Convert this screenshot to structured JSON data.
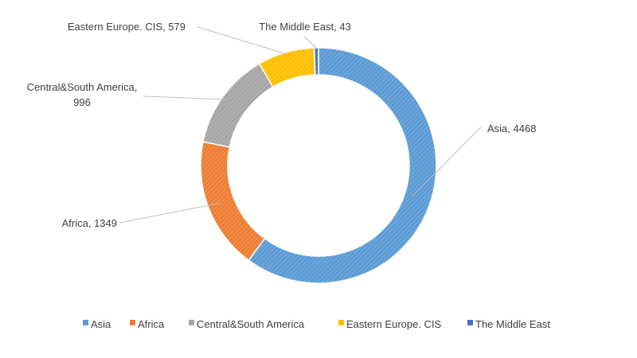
{
  "chart_data": {
    "type": "pie",
    "style": "donut",
    "title": "",
    "series": [
      {
        "labels": [
          "Asia",
          "Africa",
          "Central&South America",
          "Eastern Europe. CIS",
          "The Middle East"
        ],
        "values": [
          4468,
          1349,
          996,
          579,
          43
        ],
        "colors": [
          "#5b9bd5",
          "#ed7d31",
          "#a5a5a5",
          "#ffc000",
          "#4472c4"
        ]
      }
    ],
    "data_labels": [
      [
        "Asia, 4468"
      ],
      [
        "Africa, 1349"
      ],
      [
        "Central&South America,",
        "996"
      ],
      [
        "Eastern Europe. CIS, 579"
      ],
      [
        "The Middle East, 43"
      ]
    ],
    "legend": {
      "position": "bottom",
      "entries": [
        "Asia",
        "Africa",
        "Central&South America",
        "Eastern Europe. CIS",
        "The Middle East"
      ]
    },
    "fill_pattern": "diagonal-hatch"
  }
}
